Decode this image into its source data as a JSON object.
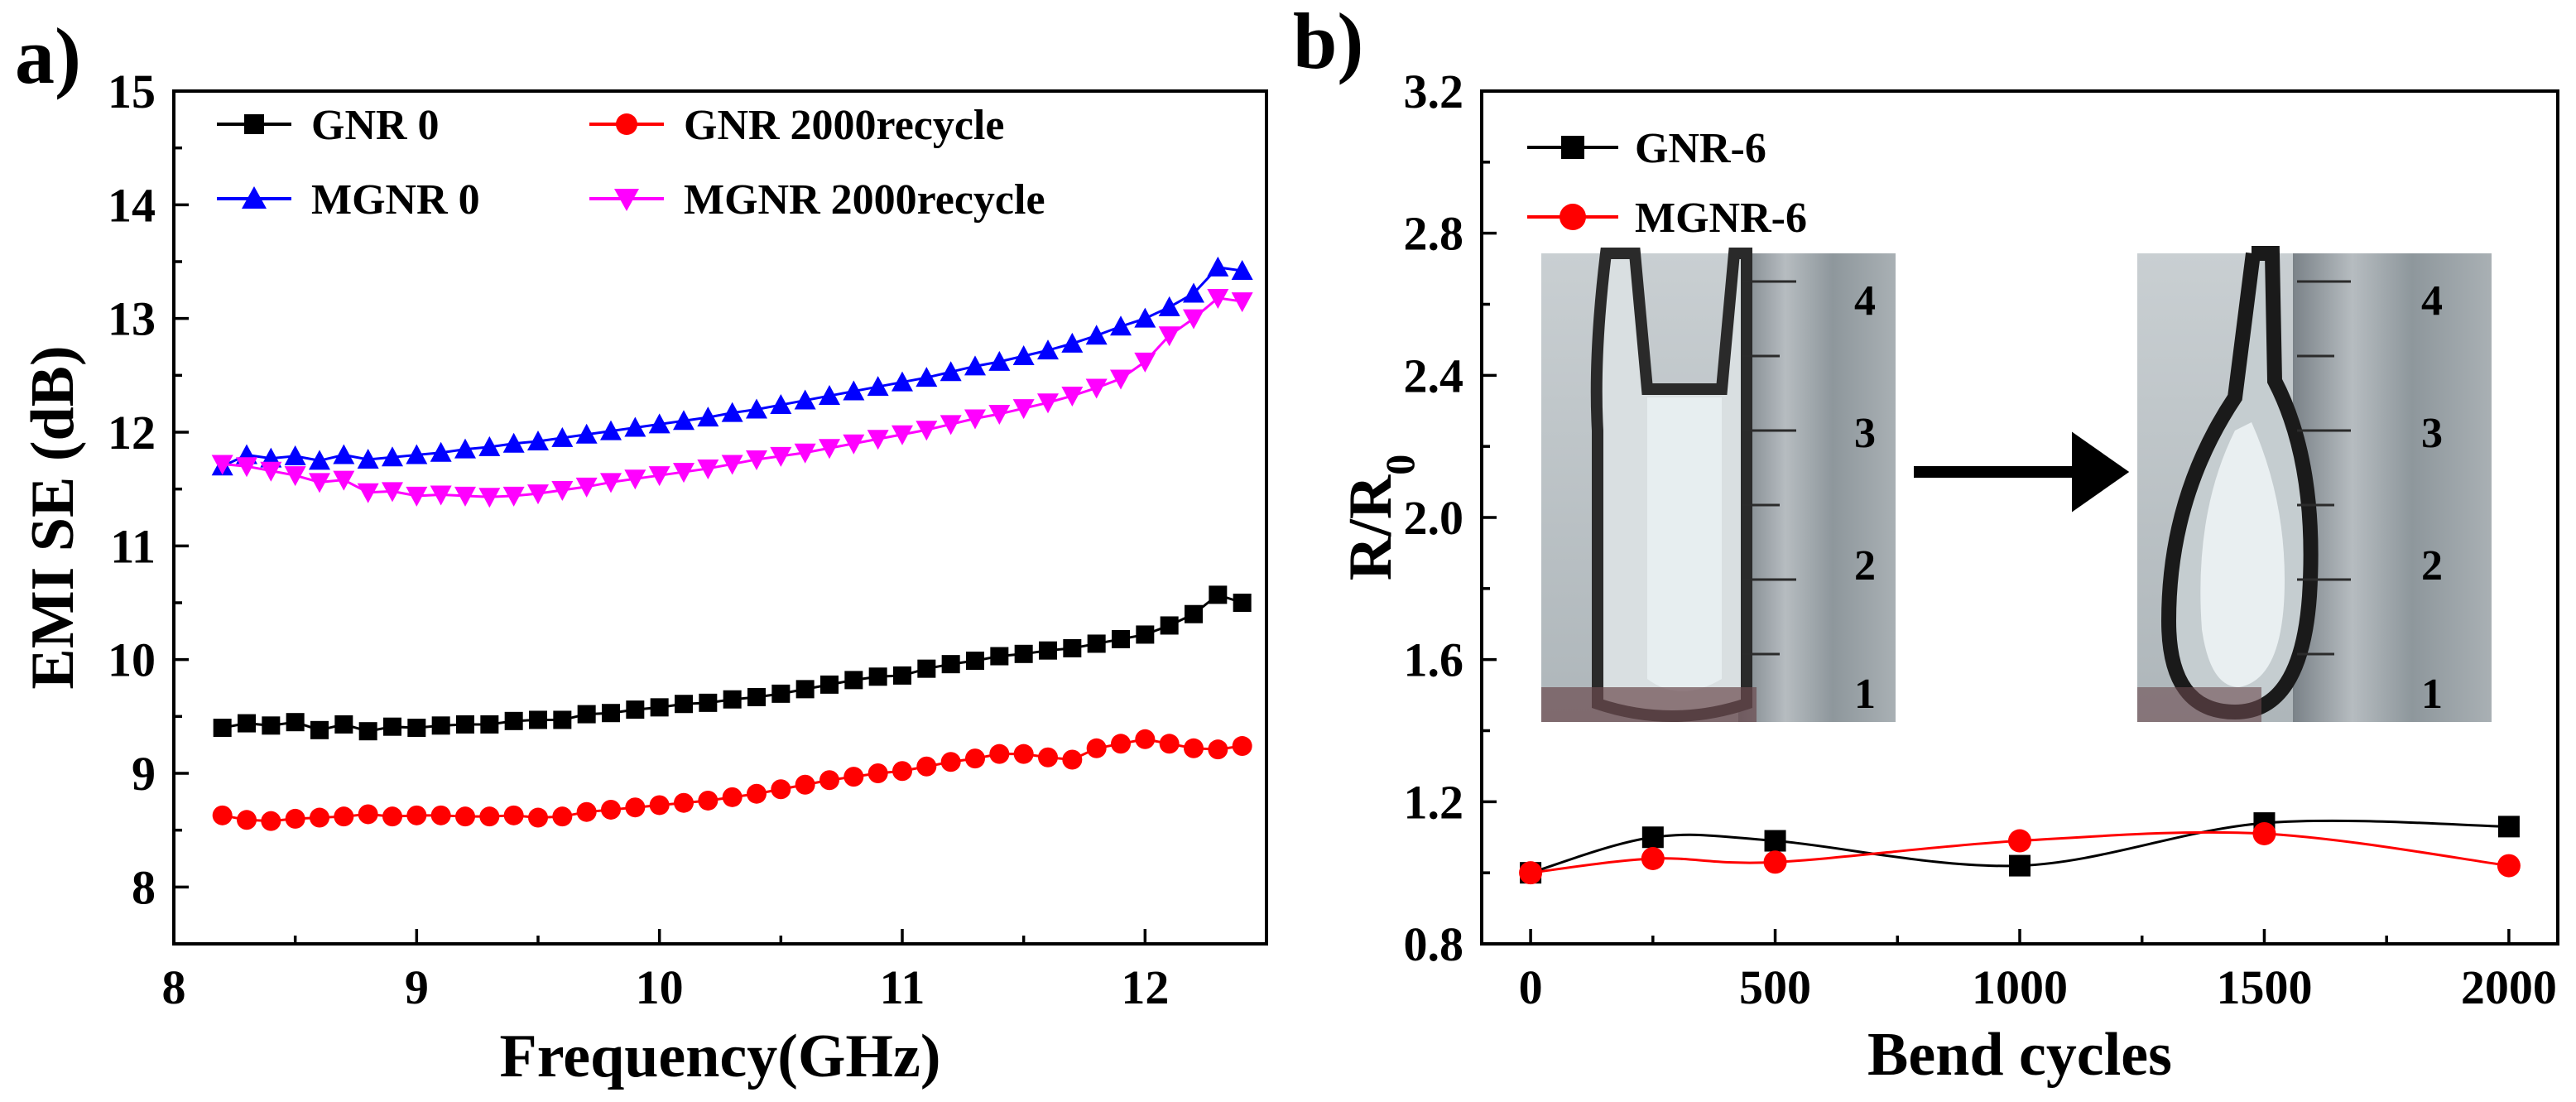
{
  "chart_data": [
    {
      "type": "scatter",
      "panel_label": "a)",
      "xlabel": "Frequency(GHz)",
      "ylabel": "EMI SE (dB)",
      "xlim": [
        8,
        12.5
      ],
      "ylim": [
        7.5,
        15
      ],
      "xticks": [
        "8",
        "9",
        "10",
        "11",
        "12"
      ],
      "yticks": [
        "8",
        "9",
        "10",
        "11",
        "12",
        "13",
        "14",
        "15"
      ],
      "xtick_values": [
        8,
        9,
        10,
        11,
        12
      ],
      "ytick_values": [
        8,
        9,
        10,
        11,
        12,
        13,
        14,
        15
      ],
      "series": [
        {
          "name": "GNR  0",
          "color": "#000000",
          "marker": "square",
          "x": [
            8.2,
            8.3,
            8.4,
            8.5,
            8.6,
            8.7,
            8.8,
            8.9,
            9.0,
            9.1,
            9.2,
            9.3,
            9.4,
            9.5,
            9.6,
            9.7,
            9.8,
            9.9,
            10.0,
            10.1,
            10.2,
            10.3,
            10.4,
            10.5,
            10.6,
            10.7,
            10.8,
            10.9,
            11.0,
            11.1,
            11.2,
            11.3,
            11.4,
            11.5,
            11.6,
            11.7,
            11.8,
            11.9,
            12.0,
            12.1,
            12.2,
            12.3,
            12.4
          ],
          "y": [
            9.4,
            9.44,
            9.42,
            9.45,
            9.38,
            9.43,
            9.37,
            9.41,
            9.4,
            9.42,
            9.43,
            9.43,
            9.46,
            9.47,
            9.47,
            9.52,
            9.53,
            9.56,
            9.58,
            9.61,
            9.62,
            9.65,
            9.67,
            9.7,
            9.74,
            9.78,
            9.82,
            9.85,
            9.86,
            9.92,
            9.96,
            9.99,
            10.03,
            10.05,
            10.08,
            10.1,
            10.14,
            10.18,
            10.22,
            10.3,
            10.4,
            10.57,
            10.5
          ]
        },
        {
          "name": "GNR  2000recycle",
          "color": "#ff0000",
          "marker": "circle",
          "x": [
            8.2,
            8.3,
            8.4,
            8.5,
            8.6,
            8.7,
            8.8,
            8.9,
            9.0,
            9.1,
            9.2,
            9.3,
            9.4,
            9.5,
            9.6,
            9.7,
            9.8,
            9.9,
            10.0,
            10.1,
            10.2,
            10.3,
            10.4,
            10.5,
            10.6,
            10.7,
            10.8,
            10.9,
            11.0,
            11.1,
            11.2,
            11.3,
            11.4,
            11.5,
            11.6,
            11.7,
            11.8,
            11.9,
            12.0,
            12.1,
            12.2,
            12.3,
            12.4
          ],
          "y": [
            8.63,
            8.59,
            8.58,
            8.6,
            8.61,
            8.62,
            8.64,
            8.62,
            8.63,
            8.63,
            8.62,
            8.62,
            8.63,
            8.61,
            8.62,
            8.66,
            8.68,
            8.7,
            8.72,
            8.74,
            8.76,
            8.79,
            8.82,
            8.86,
            8.9,
            8.94,
            8.97,
            9.0,
            9.02,
            9.06,
            9.1,
            9.13,
            9.17,
            9.17,
            9.14,
            9.12,
            9.22,
            9.26,
            9.3,
            9.26,
            9.22,
            9.21,
            9.24
          ]
        },
        {
          "name": "MGNR 0",
          "color": "#0000ff",
          "marker": "triangle-up",
          "x": [
            8.2,
            8.3,
            8.4,
            8.5,
            8.6,
            8.7,
            8.8,
            8.9,
            9.0,
            9.1,
            9.2,
            9.3,
            9.4,
            9.5,
            9.6,
            9.7,
            9.8,
            9.9,
            10.0,
            10.1,
            10.2,
            10.3,
            10.4,
            10.5,
            10.6,
            10.7,
            10.8,
            10.9,
            11.0,
            11.1,
            11.2,
            11.3,
            11.4,
            11.5,
            11.6,
            11.7,
            11.8,
            11.9,
            12.0,
            12.1,
            12.2,
            12.3,
            12.4
          ],
          "y": [
            11.7,
            11.8,
            11.77,
            11.79,
            11.75,
            11.8,
            11.76,
            11.78,
            11.8,
            11.82,
            11.85,
            11.87,
            11.9,
            11.92,
            11.95,
            11.98,
            12.01,
            12.04,
            12.07,
            12.1,
            12.13,
            12.17,
            12.2,
            12.24,
            12.28,
            12.32,
            12.36,
            12.4,
            12.44,
            12.48,
            12.53,
            12.58,
            12.62,
            12.67,
            12.72,
            12.78,
            12.85,
            12.93,
            13.0,
            13.1,
            13.22,
            13.45,
            13.42
          ]
        },
        {
          "name": "MGNR  2000recycle",
          "color": "#ff00ff",
          "marker": "triangle-down",
          "x": [
            8.2,
            8.3,
            8.4,
            8.5,
            8.6,
            8.7,
            8.8,
            8.9,
            9.0,
            9.1,
            9.2,
            9.3,
            9.4,
            9.5,
            9.6,
            9.7,
            9.8,
            9.9,
            10.0,
            10.1,
            10.2,
            10.3,
            10.4,
            10.5,
            10.6,
            10.7,
            10.8,
            10.9,
            11.0,
            11.1,
            11.2,
            11.3,
            11.4,
            11.5,
            11.6,
            11.7,
            11.8,
            11.9,
            12.0,
            12.1,
            12.2,
            12.3,
            12.4
          ],
          "y": [
            11.72,
            11.7,
            11.66,
            11.62,
            11.56,
            11.58,
            11.47,
            11.48,
            11.44,
            11.45,
            11.44,
            11.43,
            11.44,
            11.46,
            11.49,
            11.52,
            11.56,
            11.59,
            11.62,
            11.65,
            11.68,
            11.72,
            11.76,
            11.79,
            11.82,
            11.86,
            11.9,
            11.94,
            11.98,
            12.02,
            12.07,
            12.12,
            12.16,
            12.21,
            12.26,
            12.32,
            12.39,
            12.47,
            12.62,
            12.85,
            13.0,
            13.18,
            13.15
          ]
        }
      ]
    },
    {
      "type": "line",
      "panel_label": "b)",
      "xlabel": "Bend cycles",
      "ylabel": "R/R",
      "ylabel_subscript": "0",
      "xlim": [
        -100,
        2100
      ],
      "ylim": [
        0.8,
        3.2
      ],
      "xticks": [
        "0",
        "500",
        "1000",
        "1500",
        "2000"
      ],
      "yticks": [
        "0.8",
        "1.2",
        "1.6",
        "2.0",
        "2.4",
        "2.8",
        "3.2"
      ],
      "xtick_values": [
        0,
        500,
        1000,
        1500,
        2000
      ],
      "ytick_values": [
        0.8,
        1.2,
        1.6,
        2.0,
        2.4,
        2.8,
        3.2
      ],
      "series": [
        {
          "name": "GNR-6",
          "color": "#000000",
          "marker": "square",
          "x": [
            0,
            250,
            500,
            1000,
            1500,
            2000
          ],
          "y": [
            1.0,
            1.1,
            1.09,
            1.02,
            1.14,
            1.13
          ]
        },
        {
          "name": "MGNR-6",
          "color": "#ff0000",
          "marker": "circle",
          "x": [
            0,
            250,
            500,
            1000,
            1500,
            2000
          ],
          "y": [
            1.0,
            1.04,
            1.03,
            1.09,
            1.11,
            1.02
          ]
        }
      ]
    }
  ],
  "inset": {
    "description_icon": "bent-film-photo",
    "arrow_icon": "right-arrow-icon"
  }
}
